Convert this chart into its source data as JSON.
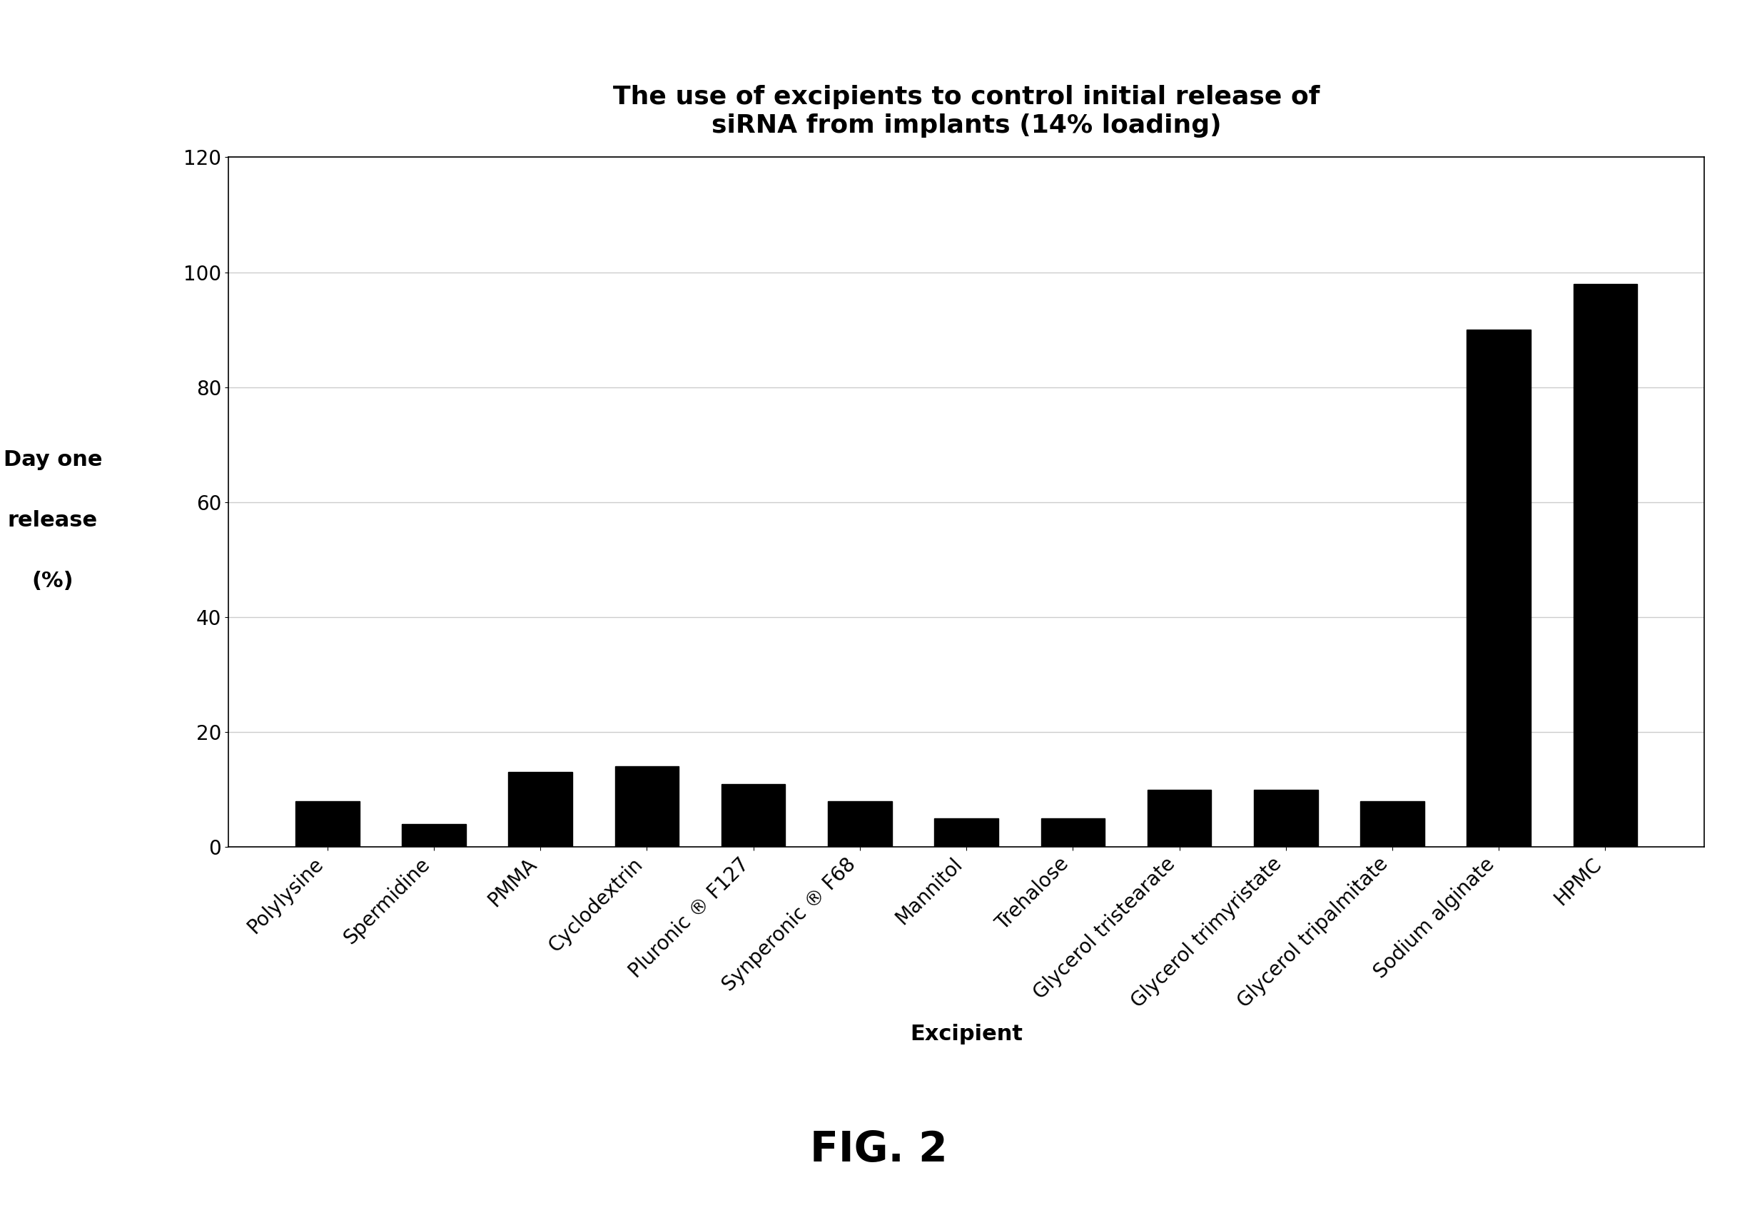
{
  "title_line1": "The use of excipients to control initial release of",
  "title_line2": "siRNA from implants (14% loading)",
  "xlabel": "Excipient",
  "ylabel_line1": "Day one",
  "ylabel_line2": "release",
  "ylabel_line3": "(%)",
  "categories": [
    "Polylysine",
    "Spermidine",
    "PMMA",
    "Cyclodextrin",
    "Pluronic ® F127",
    "Synperonic ® F68",
    "Mannitol",
    "Trehalose",
    "Glycerol tristearate",
    "Glycerol trimyristate",
    "Glycerol tripalmitate",
    "Sodium alginate",
    "HPMC"
  ],
  "values": [
    8.0,
    4.0,
    13.0,
    14.0,
    11.0,
    8.0,
    5.0,
    5.0,
    10.0,
    10.0,
    8.0,
    90.0,
    98.0
  ],
  "bar_color": "#000000",
  "ylim": [
    0,
    120
  ],
  "yticks": [
    0,
    20,
    40,
    60,
    80,
    100,
    120
  ],
  "fig_caption": "FIG. 2",
  "background_color": "#ffffff",
  "title_fontsize": 26,
  "axis_label_fontsize": 22,
  "tick_fontsize": 20,
  "caption_fontsize": 42,
  "grid_color": "#cccccc",
  "grid_linewidth": 1.0
}
